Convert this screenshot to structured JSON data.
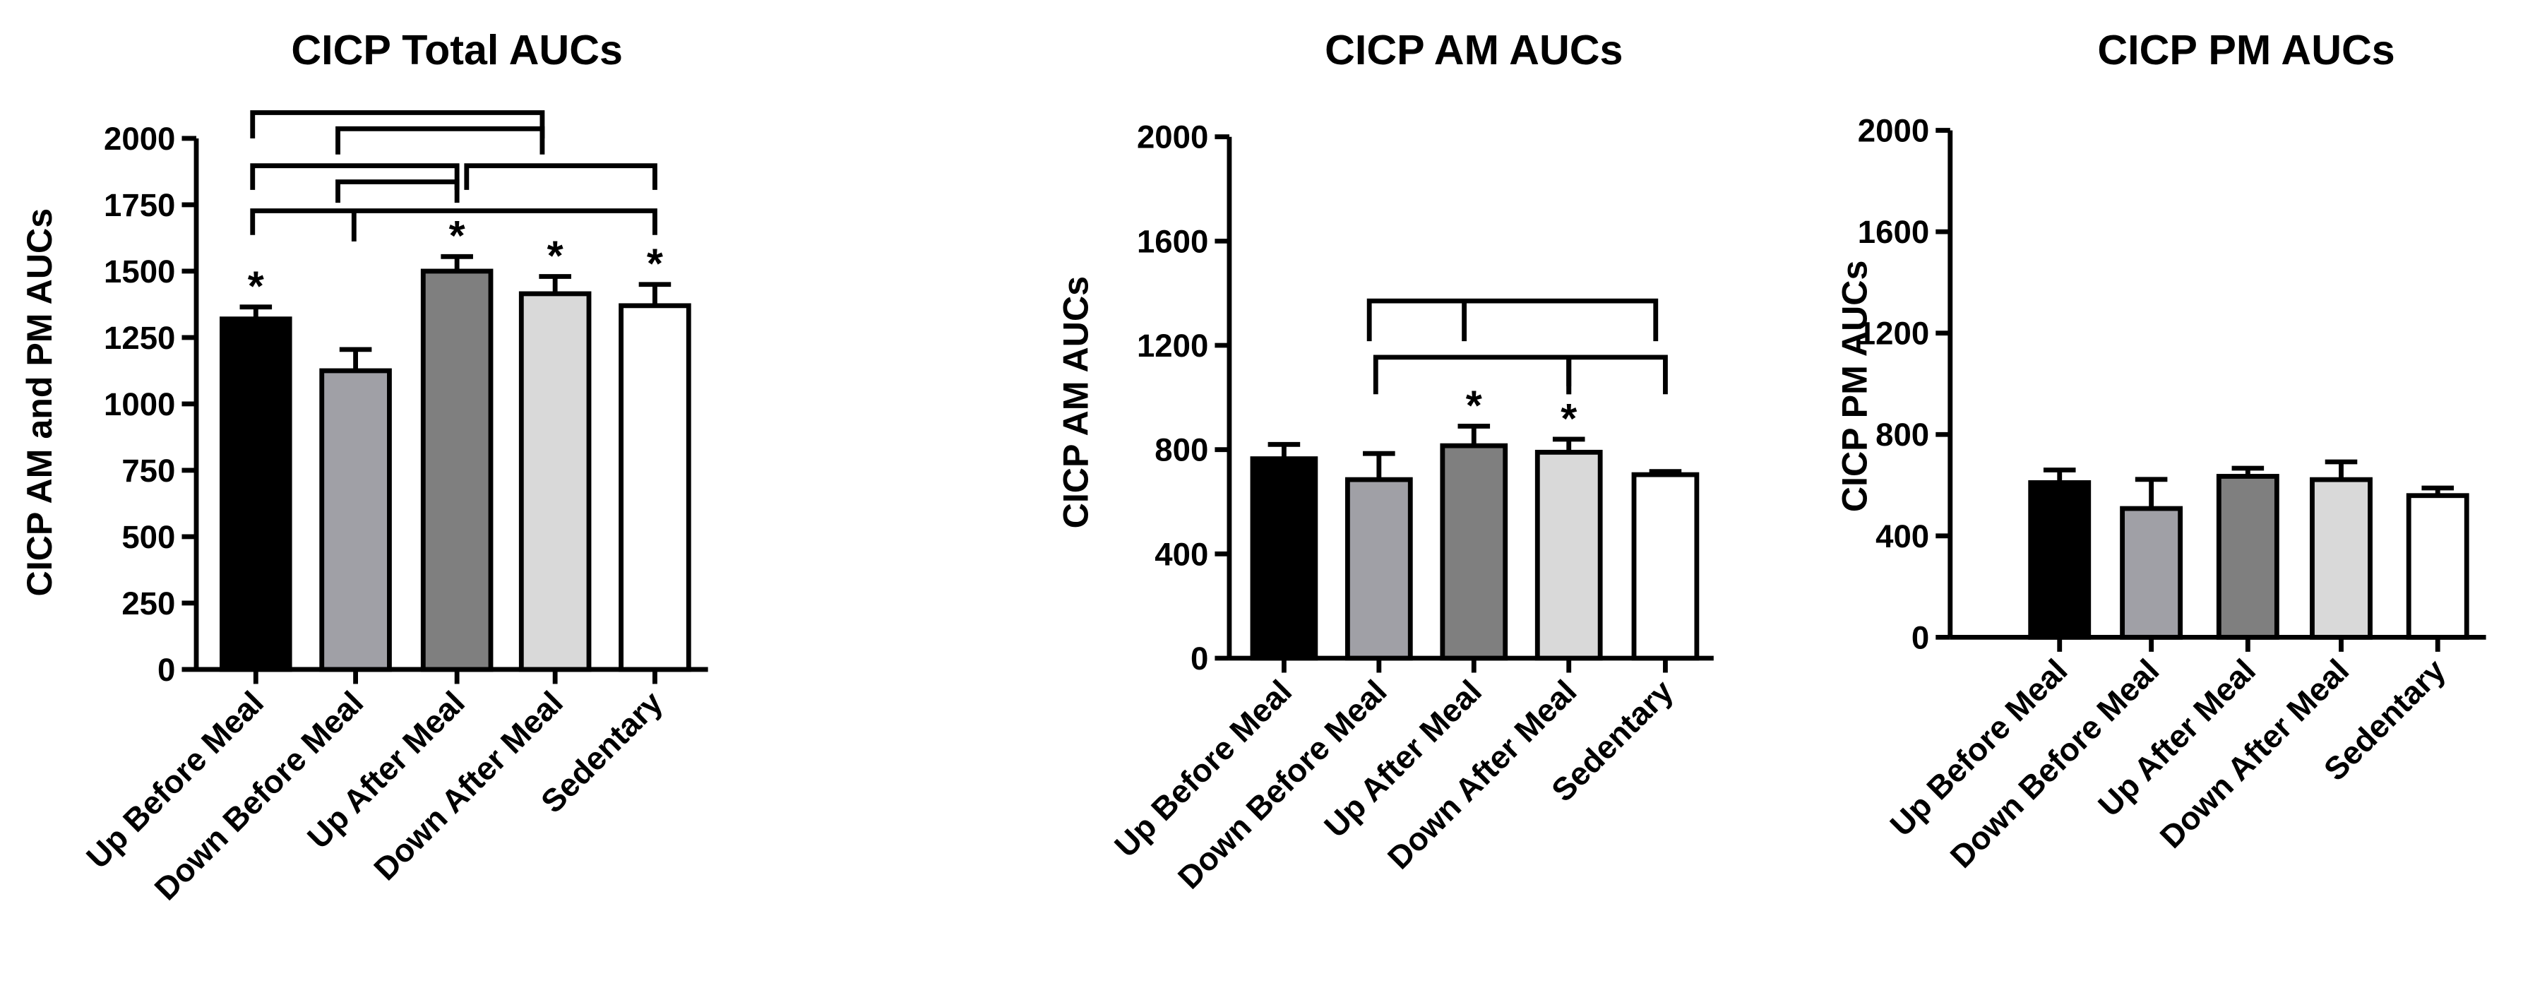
{
  "chart_data": [
    {
      "type": "bar",
      "title": "CICP Total AUCs",
      "y_label": "CICP AM and PM AUCs",
      "categories": [
        "Up Before Meal",
        "Down Before Meal",
        "Up After Meal",
        "Down After Meal",
        "Sedentary"
      ],
      "values": [
        1320,
        1125,
        1500,
        1415,
        1370
      ],
      "errors": [
        45,
        80,
        55,
        65,
        80
      ],
      "colors": [
        "#000000",
        "#a0a0a6",
        "#7f7f7f",
        "#d9d9d9",
        "#ffffff"
      ],
      "significance": [
        "*",
        null,
        "*",
        "*",
        "*"
      ],
      "ylim": [
        0,
        2000
      ],
      "yticks": [
        0,
        250,
        500,
        750,
        1000,
        1250,
        1500,
        1750,
        2000
      ]
    },
    {
      "type": "bar",
      "title": "CICP AM AUCs",
      "y_label": "CICP AM AUCs",
      "categories": [
        "Up Before Meal",
        "Down Before Meal",
        "Up After Meal",
        "Down After Meal",
        "Sedentary"
      ],
      "values": [
        765,
        685,
        815,
        790,
        704
      ],
      "errors": [
        55,
        100,
        75,
        50,
        12
      ],
      "colors": [
        "#000000",
        "#a0a0a6",
        "#7f7f7f",
        "#d9d9d9",
        "#ffffff"
      ],
      "significance": [
        null,
        null,
        "*",
        "*",
        null
      ],
      "ylim": [
        0,
        2000
      ],
      "yticks": [
        0,
        400,
        800,
        1200,
        1600,
        2000
      ]
    },
    {
      "type": "bar",
      "title": "CICP PM AUCs",
      "y_label": "CICP PM AUCs",
      "categories": [
        "Up Before Meal",
        "Down Before Meal",
        "Up After Meal",
        "Down After Meal",
        "Sedentary"
      ],
      "values": [
        610,
        508,
        635,
        622,
        559
      ],
      "errors": [
        50,
        115,
        32,
        70,
        30
      ],
      "colors": [
        "#000000",
        "#a0a0a6",
        "#7f7f7f",
        "#d9d9d9",
        "#ffffff"
      ],
      "significance": [
        null,
        null,
        null,
        null,
        null
      ],
      "ylim": [
        0,
        2000
      ],
      "yticks": [
        0,
        400,
        800,
        1200,
        1600,
        2000
      ]
    }
  ]
}
